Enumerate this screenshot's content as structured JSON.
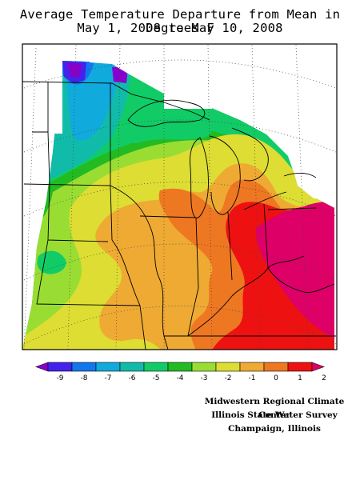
{
  "map": {
    "title_line1": "Average Temperature Departure from Mean in Degrees F",
    "title_line2": "May 1, 2008 to May 10, 2008",
    "legend": {
      "ticks": [
        "-9",
        "-8",
        "-7",
        "-6",
        "-5",
        "-4",
        "-3",
        "-2",
        "-1",
        "0",
        "1",
        "2"
      ],
      "colors": [
        "#8800cc",
        "#4422ee",
        "#1177ee",
        "#11aadd",
        "#11bbaa",
        "#11cc66",
        "#22bb22",
        "#99dd33",
        "#dddd33",
        "#eeaa33",
        "#ee7722",
        "#ee1111",
        "#dd0066"
      ]
    },
    "credits": {
      "line1": "Midwestern Regional Climate Center",
      "line2": "Illinois State Water Survey",
      "line3": "Champaign, Illinois"
    }
  }
}
